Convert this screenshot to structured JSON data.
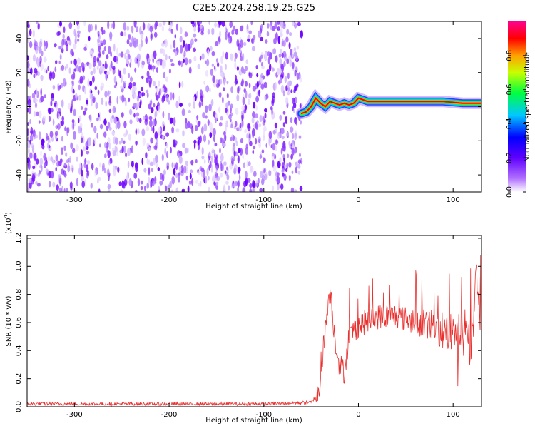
{
  "title": "C2E5.2024.258.19.25.G25",
  "chart_data": [
    {
      "type": "heatmap",
      "xlabel": "Height of straight line (km)",
      "ylabel": "Frequency (Hz)",
      "xlim": [
        -350,
        130
      ],
      "ylim": [
        -50,
        50
      ],
      "xticks": [
        -300,
        -200,
        -100,
        0,
        100
      ],
      "xtick_labels": [
        "-300",
        "-200",
        "-100",
        "0",
        "100"
      ],
      "yticks": [
        -40,
        -20,
        0,
        20,
        40
      ],
      "ytick_labels": [
        "-40",
        "-20",
        "0",
        "20",
        "40"
      ],
      "colorbar": {
        "label": "Normalized spectral amplitude",
        "range": [
          0,
          1
        ],
        "ticks": [
          0.0,
          0.2,
          0.4,
          0.6,
          0.8
        ],
        "tick_labels": [
          "0.0",
          "0.2",
          "0.4",
          "0.6",
          "0.8"
        ],
        "colors": [
          "#ffffff",
          "#8000ff",
          "#0000ff",
          "#00c8ff",
          "#00ff40",
          "#c8ff00",
          "#ffa000",
          "#ff0000",
          "#ff0090"
        ]
      },
      "noise_region_x": [
        -350,
        -60
      ],
      "ridge": {
        "x": [
          -60,
          -55,
          -50,
          -45,
          -40,
          -35,
          -30,
          -25,
          -20,
          -15,
          -10,
          -5,
          0,
          10,
          30,
          50,
          70,
          90,
          110,
          130
        ],
        "y": [
          -4,
          -3,
          0,
          5,
          2,
          0,
          3,
          2,
          1,
          2,
          1,
          2,
          5,
          3,
          3,
          3,
          3,
          3,
          2,
          2
        ]
      },
      "grid": false
    },
    {
      "type": "line",
      "xlabel": "Height of straight line (km)",
      "ylabel": "SNR (10 * v/v)",
      "y_multiplier": "(x10",
      "y_multiplier_exp": "4",
      "xlim": [
        -350,
        130
      ],
      "ylim": [
        0,
        1.22
      ],
      "xticks": [
        -300,
        -200,
        -100,
        0,
        100
      ],
      "xtick_labels": [
        "-300",
        "-200",
        "-100",
        "0",
        "100"
      ],
      "yticks": [
        0.0,
        0.2,
        0.4,
        0.6,
        0.8,
        1.0,
        1.2
      ],
      "ytick_labels": [
        "0.0",
        "0.2",
        "0.4",
        "0.6",
        "0.8",
        "1.0",
        "1.2"
      ],
      "series_color": "#e8312f",
      "profile": {
        "x": [
          -350,
          -300,
          -200,
          -100,
          -50,
          -42,
          -35,
          -30,
          -25,
          -20,
          -15,
          -10,
          0,
          20,
          40,
          60,
          80,
          100,
          110,
          120,
          125,
          130
        ],
        "y": [
          0.02,
          0.02,
          0.02,
          0.02,
          0.03,
          0.1,
          0.55,
          0.85,
          0.5,
          0.3,
          0.25,
          0.5,
          0.58,
          0.64,
          0.65,
          0.6,
          0.58,
          0.5,
          0.55,
          0.45,
          0.9,
          0.6
        ]
      },
      "grid": false
    }
  ]
}
